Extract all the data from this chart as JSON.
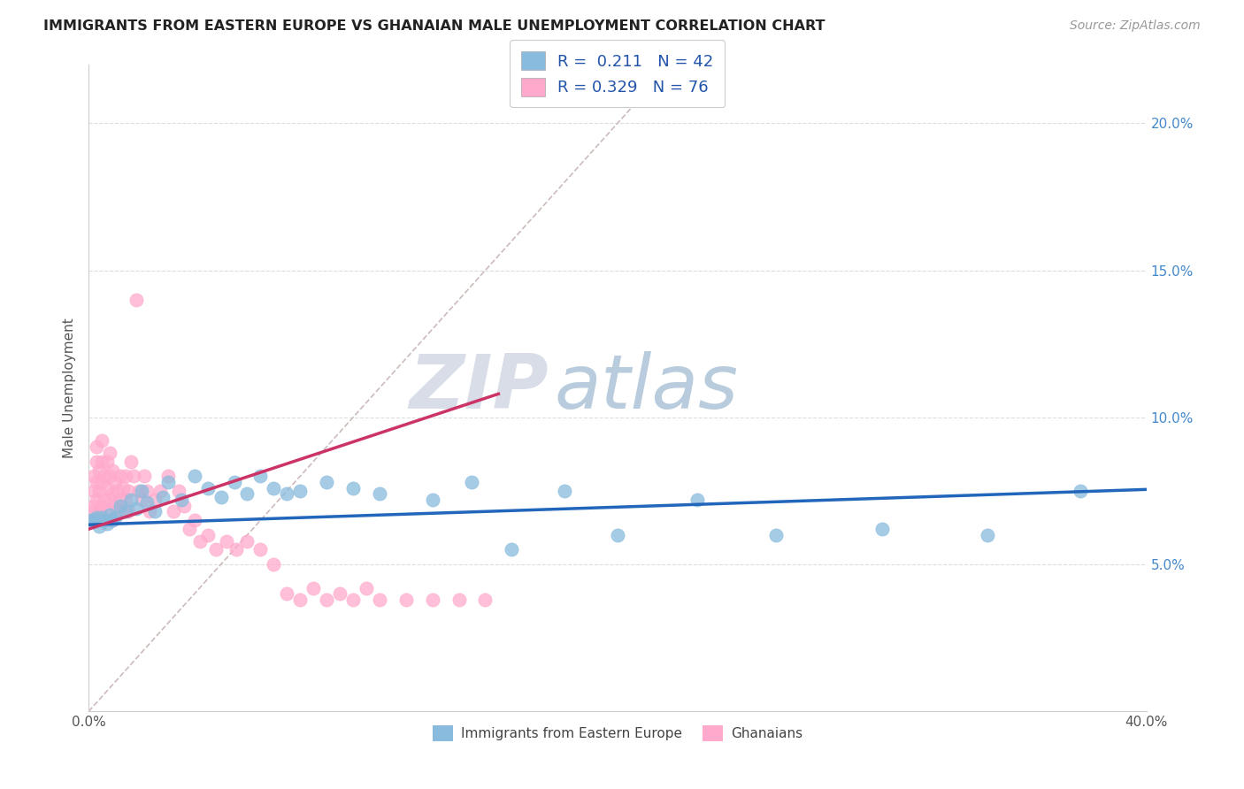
{
  "title": "IMMIGRANTS FROM EASTERN EUROPE VS GHANAIAN MALE UNEMPLOYMENT CORRELATION CHART",
  "source_text": "Source: ZipAtlas.com",
  "ylabel": "Male Unemployment",
  "xlim": [
    0.0,
    0.4
  ],
  "ylim": [
    0.0,
    0.22
  ],
  "yticks": [
    0.05,
    0.1,
    0.15,
    0.2
  ],
  "ytick_labels": [
    "5.0%",
    "10.0%",
    "15.0%",
    "20.0%"
  ],
  "legend_r1_label": "R =  0.211   N = 42",
  "legend_r2_label": "R = 0.329   N = 76",
  "blue_color": "#88bbdd",
  "pink_color": "#ffaacc",
  "blue_line_color": "#2266bb",
  "pink_line_color": "#cc3366",
  "ref_line_color": "#ccbbbb",
  "watermark_zip": "ZIP",
  "watermark_atlas": "atlas",
  "watermark_zip_color": "#d8dde8",
  "watermark_atlas_color": "#b8ccdd",
  "background_color": "#ffffff",
  "grid_color": "#dddddd",
  "blue_scatter_x": [
    0.001,
    0.002,
    0.003,
    0.004,
    0.005,
    0.006,
    0.007,
    0.008,
    0.009,
    0.01,
    0.012,
    0.014,
    0.016,
    0.018,
    0.02,
    0.022,
    0.025,
    0.028,
    0.03,
    0.035,
    0.04,
    0.045,
    0.05,
    0.055,
    0.06,
    0.065,
    0.07,
    0.075,
    0.08,
    0.09,
    0.1,
    0.11,
    0.13,
    0.145,
    0.16,
    0.18,
    0.2,
    0.23,
    0.26,
    0.3,
    0.34,
    0.375
  ],
  "blue_scatter_y": [
    0.065,
    0.065,
    0.066,
    0.063,
    0.066,
    0.065,
    0.064,
    0.067,
    0.065,
    0.066,
    0.07,
    0.068,
    0.072,
    0.069,
    0.075,
    0.071,
    0.068,
    0.073,
    0.078,
    0.072,
    0.08,
    0.076,
    0.073,
    0.078,
    0.074,
    0.08,
    0.076,
    0.074,
    0.075,
    0.078,
    0.076,
    0.074,
    0.072,
    0.078,
    0.055,
    0.075,
    0.06,
    0.072,
    0.06,
    0.062,
    0.06,
    0.075
  ],
  "pink_scatter_x": [
    0.001,
    0.001,
    0.002,
    0.002,
    0.002,
    0.003,
    0.003,
    0.003,
    0.003,
    0.004,
    0.004,
    0.004,
    0.005,
    0.005,
    0.005,
    0.005,
    0.006,
    0.006,
    0.006,
    0.007,
    0.007,
    0.007,
    0.008,
    0.008,
    0.008,
    0.009,
    0.009,
    0.009,
    0.01,
    0.01,
    0.011,
    0.011,
    0.012,
    0.012,
    0.013,
    0.013,
    0.014,
    0.014,
    0.015,
    0.015,
    0.016,
    0.017,
    0.018,
    0.019,
    0.02,
    0.021,
    0.022,
    0.023,
    0.025,
    0.027,
    0.03,
    0.032,
    0.034,
    0.036,
    0.038,
    0.04,
    0.042,
    0.045,
    0.048,
    0.052,
    0.056,
    0.06,
    0.065,
    0.07,
    0.075,
    0.08,
    0.085,
    0.09,
    0.095,
    0.1,
    0.105,
    0.11,
    0.12,
    0.13,
    0.14,
    0.15
  ],
  "pink_scatter_y": [
    0.065,
    0.068,
    0.07,
    0.075,
    0.08,
    0.072,
    0.078,
    0.085,
    0.09,
    0.068,
    0.075,
    0.082,
    0.07,
    0.078,
    0.085,
    0.092,
    0.065,
    0.072,
    0.08,
    0.068,
    0.076,
    0.085,
    0.072,
    0.08,
    0.088,
    0.065,
    0.074,
    0.082,
    0.07,
    0.078,
    0.068,
    0.075,
    0.072,
    0.08,
    0.068,
    0.076,
    0.072,
    0.08,
    0.068,
    0.075,
    0.085,
    0.08,
    0.14,
    0.075,
    0.072,
    0.08,
    0.075,
    0.068,
    0.072,
    0.075,
    0.08,
    0.068,
    0.075,
    0.07,
    0.062,
    0.065,
    0.058,
    0.06,
    0.055,
    0.058,
    0.055,
    0.058,
    0.055,
    0.05,
    0.04,
    0.038,
    0.042,
    0.038,
    0.04,
    0.038,
    0.042,
    0.038,
    0.038,
    0.038,
    0.038,
    0.038
  ],
  "blue_trend_x": [
    0.0,
    0.4
  ],
  "blue_trend_y": [
    0.0635,
    0.0755
  ],
  "pink_trend_x": [
    0.0,
    0.155
  ],
  "pink_trend_y": [
    0.062,
    0.108
  ],
  "ref_line_x": [
    0.0,
    0.22
  ],
  "ref_line_y": [
    0.0,
    0.22
  ]
}
